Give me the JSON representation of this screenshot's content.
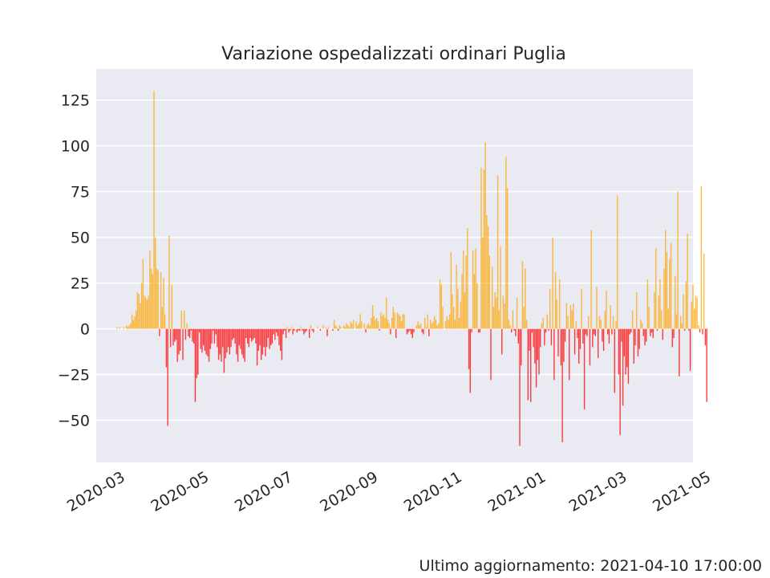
{
  "footer": {
    "label": "Ultimo aggiornamento: 2021-04-10 17:00:00"
  },
  "chart_data": {
    "type": "bar",
    "title": "Variazione ospedalizzati ordinari Puglia",
    "xlabel": "",
    "ylabel": "",
    "x_start": "2020-02-24",
    "xlim": [
      "2020-02-13",
      "2021-04-22"
    ],
    "ylim": [
      -73,
      142
    ],
    "yticks": [
      125,
      100,
      75,
      50,
      25,
      0,
      -25,
      -50
    ],
    "ytick_labels": [
      "125",
      "100",
      "75",
      "50",
      "25",
      "0",
      "−25",
      "−50"
    ],
    "xticks": [
      "2020-03-01",
      "2020-05-01",
      "2020-07-01",
      "2020-09-01",
      "2020-11-01",
      "2021-01-01",
      "2021-03-01",
      "2021-05-01"
    ],
    "xtick_labels": [
      "2020-03",
      "2020-05",
      "2020-07",
      "2020-09",
      "2020-11",
      "2021-01",
      "2021-03",
      "2021-05"
    ],
    "grid": true,
    "colors": {
      "positive": "#ffa500",
      "negative": "#ff0000",
      "background": "#eaeaf2",
      "grid": "#ffffff"
    },
    "values": [
      0,
      0,
      0,
      0,
      1,
      0,
      1,
      0,
      0,
      1,
      0,
      2,
      1,
      2,
      3,
      8,
      5,
      7,
      10,
      20,
      19,
      14,
      25,
      38,
      18,
      17,
      16,
      18,
      43,
      33,
      30,
      130,
      50,
      33,
      32,
      -4,
      31,
      12,
      28,
      8,
      -21,
      -53,
      51,
      -10,
      24,
      -9,
      -7,
      -6,
      -18,
      -14,
      -12,
      10,
      -17,
      10,
      -6,
      3,
      -4,
      -5,
      -1,
      -7,
      -8,
      -40,
      -27,
      -25,
      -2,
      -11,
      -13,
      -9,
      -12,
      -14,
      -15,
      -18,
      -11,
      -8,
      -1,
      -8,
      -3,
      -10,
      -17,
      -14,
      -18,
      -10,
      -24,
      -16,
      -13,
      -10,
      -14,
      -10,
      -6,
      -5,
      -8,
      -14,
      -18,
      -9,
      -11,
      -14,
      -16,
      -18,
      -5,
      -8,
      -10,
      -5,
      -7,
      -6,
      -5,
      -8,
      -20,
      -12,
      -9,
      -17,
      -14,
      -10,
      -15,
      -10,
      -5,
      -11,
      -9,
      -8,
      -3,
      -6,
      -2,
      -4,
      -9,
      -12,
      -17,
      -3,
      -1,
      -5,
      1,
      -2,
      -1,
      1,
      -3,
      -1,
      0,
      -2,
      -1,
      -1,
      1,
      -1,
      -3,
      -2,
      -1,
      0,
      -5,
      2,
      -1,
      -2,
      0,
      0,
      1,
      0,
      -1,
      0,
      2,
      0,
      1,
      -4,
      1,
      0,
      0,
      -1,
      5,
      2,
      1,
      -1,
      2,
      1,
      0,
      2,
      1,
      3,
      2,
      1,
      4,
      3,
      5,
      0,
      4,
      2,
      3,
      8,
      4,
      0,
      3,
      -2,
      2,
      3,
      2,
      6,
      13,
      7,
      5,
      6,
      4,
      -1,
      9,
      7,
      8,
      6,
      17,
      5,
      3,
      -3,
      6,
      12,
      9,
      -5,
      9,
      8,
      7,
      4,
      8,
      8,
      0,
      -3,
      -2,
      -1,
      -3,
      -5,
      -2,
      0,
      2,
      4,
      2,
      3,
      -2,
      -3,
      6,
      1,
      8,
      -4,
      5,
      3,
      4,
      7,
      5,
      2,
      3,
      27,
      24,
      12,
      0,
      4,
      7,
      5,
      8,
      42,
      19,
      12,
      5,
      35,
      22,
      6,
      15,
      30,
      43,
      20,
      40,
      55,
      -22,
      -35,
      -2,
      43,
      30,
      44,
      25,
      -2,
      -2,
      88,
      50,
      87,
      102,
      62,
      56,
      40,
      -28,
      34,
      12,
      20,
      17,
      84,
      10,
      45,
      -14,
      18,
      14,
      94,
      77,
      5,
      2,
      -2,
      10,
      -1,
      -4,
      17,
      -8,
      -64,
      -20,
      37,
      12,
      33,
      5,
      -39,
      -12,
      -40,
      -2,
      -10,
      -19,
      -32,
      -17,
      -25,
      -10,
      3,
      6,
      -9,
      -2,
      8,
      -1,
      22,
      -9,
      50,
      -28,
      31,
      16,
      -15,
      27,
      -20,
      -62,
      -18,
      -7,
      14,
      7,
      -28,
      13,
      10,
      14,
      -14,
      4,
      -5,
      -19,
      -11,
      22,
      -8,
      -44,
      -3,
      -4,
      7,
      -20,
      54,
      -10,
      -3,
      -4,
      23,
      -16,
      7,
      5,
      -7,
      -12,
      10,
      21,
      -3,
      -8,
      13,
      -3,
      7,
      -35,
      4,
      73,
      -25,
      -58,
      -7,
      -42,
      -15,
      -25,
      -21,
      -30,
      -3,
      -2,
      10,
      -19,
      -9,
      20,
      -15,
      -11,
      5,
      3,
      -4,
      -9,
      -7,
      27,
      12,
      -4,
      -2,
      -5,
      20,
      44,
      -1,
      18,
      27,
      10,
      -6,
      33,
      54,
      42,
      11,
      38,
      47,
      -10,
      -5,
      29,
      8,
      75,
      -26,
      7,
      3,
      19,
      -1,
      26,
      52,
      -1,
      -23,
      15,
      24,
      11,
      18,
      17,
      2,
      -2,
      78,
      -3,
      41,
      -9,
      -40
    ]
  }
}
